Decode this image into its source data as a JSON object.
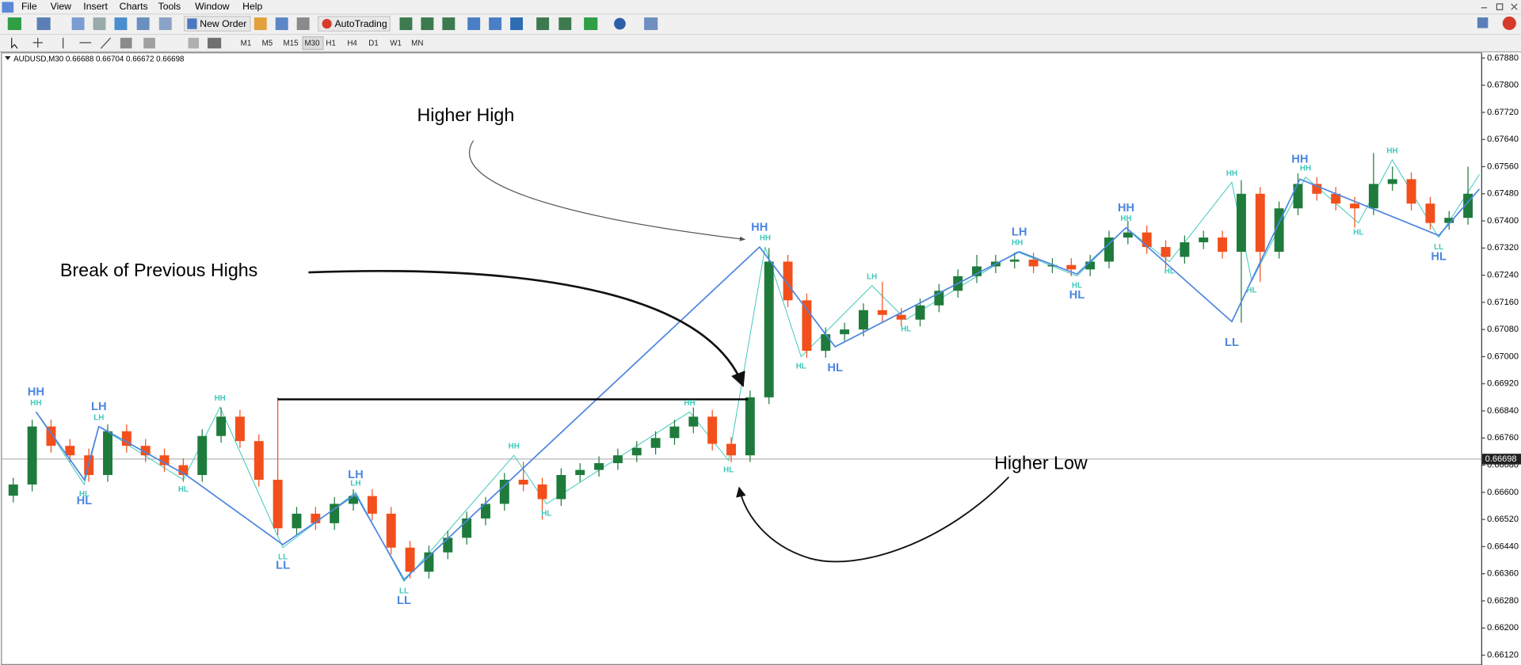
{
  "menu": [
    "File",
    "View",
    "Insert",
    "Charts",
    "Tools",
    "Window",
    "Help"
  ],
  "toolbar": {
    "new_order": "New Order",
    "autotrading": "AutoTrading"
  },
  "timeframes": [
    "M1",
    "M5",
    "M15",
    "M30",
    "H1",
    "H4",
    "D1",
    "W1",
    "MN"
  ],
  "chart_header": "AUDUSD,M30  0.66688 0.66704 0.66672 0.66698",
  "chart_data": {
    "type": "candlestick",
    "up_color": "#1e7b3c",
    "down_color": "#f24f1c",
    "xlim": [
      -0.6,
      77.7
    ],
    "ylim": [
      0.66091,
      0.67894
    ],
    "yticks": [
      {
        "value": 0.6788,
        "label": "0.67880"
      },
      {
        "value": 0.678,
        "label": "0.67800"
      },
      {
        "value": 0.6772,
        "label": "0.67720"
      },
      {
        "value": 0.6764,
        "label": "0.67640"
      },
      {
        "value": 0.6756,
        "label": "0.67560"
      },
      {
        "value": 0.6748,
        "label": "0.67480"
      },
      {
        "value": 0.674,
        "label": "0.67400"
      },
      {
        "value": 0.6732,
        "label": "0.67320"
      },
      {
        "value": 0.6724,
        "label": "0.67240"
      },
      {
        "value": 0.6716,
        "label": "0.67160"
      },
      {
        "value": 0.6708,
        "label": "0.67080"
      },
      {
        "value": 0.67,
        "label": "0.67000"
      },
      {
        "value": 0.6692,
        "label": "0.66920"
      },
      {
        "value": 0.6684,
        "label": "0.66840"
      },
      {
        "value": 0.6676,
        "label": "0.66760"
      },
      {
        "value": 0.6668,
        "label": "0.66680"
      },
      {
        "value": 0.666,
        "label": "0.66600"
      },
      {
        "value": 0.6652,
        "label": "0.66520"
      },
      {
        "value": 0.6644,
        "label": "0.66440"
      },
      {
        "value": 0.6636,
        "label": "0.66360"
      },
      {
        "value": 0.6628,
        "label": "0.66280"
      },
      {
        "value": 0.662,
        "label": "0.66200"
      },
      {
        "value": 0.6612,
        "label": "0.66120"
      }
    ],
    "ohlc": [
      [
        0.6659,
        0.66643,
        0.6657,
        0.66623
      ],
      [
        0.66623,
        0.66814,
        0.66603,
        0.66794
      ],
      [
        0.66794,
        0.66814,
        0.66717,
        0.66737
      ],
      [
        0.66737,
        0.66757,
        0.66689,
        0.66709
      ],
      [
        0.66709,
        0.66729,
        0.66631,
        0.66651
      ],
      [
        0.66651,
        0.668,
        0.66631,
        0.6678
      ],
      [
        0.6678,
        0.668,
        0.66717,
        0.66737
      ],
      [
        0.66737,
        0.66757,
        0.66689,
        0.66709
      ],
      [
        0.66709,
        0.66729,
        0.6666,
        0.6668
      ],
      [
        0.6668,
        0.667,
        0.66631,
        0.66651
      ],
      [
        0.66651,
        0.66786,
        0.66631,
        0.66766
      ],
      [
        0.66766,
        0.6685,
        0.66746,
        0.66823
      ],
      [
        0.66823,
        0.66843,
        0.66731,
        0.66751
      ],
      [
        0.66751,
        0.66771,
        0.66617,
        0.66637
      ],
      [
        0.66637,
        0.6688,
        0.66474,
        0.66494
      ],
      [
        0.66494,
        0.66557,
        0.66474,
        0.66537
      ],
      [
        0.66537,
        0.66557,
        0.66489,
        0.66509
      ],
      [
        0.66509,
        0.66586,
        0.66489,
        0.66566
      ],
      [
        0.66566,
        0.66609,
        0.66546,
        0.66589
      ],
      [
        0.66589,
        0.66609,
        0.66517,
        0.66537
      ],
      [
        0.66537,
        0.66557,
        0.66417,
        0.66437
      ],
      [
        0.66437,
        0.66457,
        0.66346,
        0.66366
      ],
      [
        0.66366,
        0.66443,
        0.66346,
        0.66423
      ],
      [
        0.66423,
        0.66486,
        0.66403,
        0.66466
      ],
      [
        0.66466,
        0.66543,
        0.66446,
        0.66523
      ],
      [
        0.66523,
        0.66586,
        0.66503,
        0.66566
      ],
      [
        0.66566,
        0.66657,
        0.66546,
        0.66637
      ],
      [
        0.66637,
        0.6669,
        0.66603,
        0.66623
      ],
      [
        0.66623,
        0.66643,
        0.6652,
        0.6658
      ],
      [
        0.6658,
        0.66671,
        0.6656,
        0.66651
      ],
      [
        0.66651,
        0.66686,
        0.66631,
        0.66666
      ],
      [
        0.66666,
        0.66706,
        0.66646,
        0.66686
      ],
      [
        0.66686,
        0.66729,
        0.66666,
        0.66709
      ],
      [
        0.66709,
        0.66751,
        0.66689,
        0.66731
      ],
      [
        0.66731,
        0.6678,
        0.66711,
        0.6676
      ],
      [
        0.6676,
        0.66814,
        0.6674,
        0.66794
      ],
      [
        0.66794,
        0.6685,
        0.66774,
        0.66823
      ],
      [
        0.66823,
        0.66843,
        0.66723,
        0.66743
      ],
      [
        0.66743,
        0.66763,
        0.66689,
        0.66709
      ],
      [
        0.66709,
        0.669,
        0.66689,
        0.6688
      ],
      [
        0.6688,
        0.6732,
        0.6686,
        0.6728
      ],
      [
        0.6728,
        0.673,
        0.67146,
        0.67166
      ],
      [
        0.67166,
        0.67186,
        0.66997,
        0.67017
      ],
      [
        0.67017,
        0.67086,
        0.66997,
        0.67066
      ],
      [
        0.67066,
        0.671,
        0.67046,
        0.6708
      ],
      [
        0.6708,
        0.67157,
        0.6706,
        0.67137
      ],
      [
        0.67137,
        0.6722,
        0.67103,
        0.67123
      ],
      [
        0.67123,
        0.67143,
        0.67089,
        0.67109
      ],
      [
        0.67109,
        0.67171,
        0.67089,
        0.67151
      ],
      [
        0.67151,
        0.67214,
        0.67131,
        0.67194
      ],
      [
        0.67194,
        0.67257,
        0.67174,
        0.67237
      ],
      [
        0.67237,
        0.673,
        0.67217,
        0.67266
      ],
      [
        0.67266,
        0.673,
        0.67246,
        0.6728
      ],
      [
        0.6728,
        0.67306,
        0.6726,
        0.67286
      ],
      [
        0.67286,
        0.67306,
        0.67246,
        0.67266
      ],
      [
        0.67266,
        0.6729,
        0.67246,
        0.6727
      ],
      [
        0.6727,
        0.6729,
        0.67237,
        0.67257
      ],
      [
        0.67257,
        0.673,
        0.67237,
        0.6728
      ],
      [
        0.6728,
        0.67371,
        0.6726,
        0.67351
      ],
      [
        0.67351,
        0.674,
        0.67331,
        0.67366
      ],
      [
        0.67366,
        0.67386,
        0.67303,
        0.67323
      ],
      [
        0.67323,
        0.67343,
        0.6726,
        0.67294
      ],
      [
        0.67294,
        0.67357,
        0.67274,
        0.67337
      ],
      [
        0.67337,
        0.67371,
        0.67317,
        0.67351
      ],
      [
        0.67351,
        0.67371,
        0.67289,
        0.67309
      ],
      [
        0.67309,
        0.6752,
        0.671,
        0.6748
      ],
      [
        0.6748,
        0.675,
        0.6722,
        0.67309
      ],
      [
        0.67309,
        0.67457,
        0.67289,
        0.67437
      ],
      [
        0.67437,
        0.6754,
        0.67417,
        0.67509
      ],
      [
        0.67509,
        0.67529,
        0.6746,
        0.6748
      ],
      [
        0.6748,
        0.675,
        0.67431,
        0.67451
      ],
      [
        0.67451,
        0.67471,
        0.6738,
        0.67437
      ],
      [
        0.67437,
        0.676,
        0.67417,
        0.67509
      ],
      [
        0.67509,
        0.6756,
        0.67489,
        0.67523
      ],
      [
        0.67523,
        0.67543,
        0.67431,
        0.67451
      ],
      [
        0.67451,
        0.67471,
        0.67374,
        0.67394
      ],
      [
        0.67394,
        0.67429,
        0.67374,
        0.67409
      ],
      [
        0.67409,
        0.6756,
        0.67389,
        0.6748
      ]
    ],
    "zigzag": {
      "color": "#4d86e0",
      "points": [
        {
          "x": 1.2,
          "y": 0.66837,
          "label": "HH"
        },
        {
          "x": 3.76,
          "y": 0.66637,
          "label": "HL"
        },
        {
          "x": 4.53,
          "y": 0.66794,
          "label": "LH"
        },
        {
          "x": 9.15,
          "y": 0.66651,
          "label": null
        },
        {
          "x": 14.27,
          "y": 0.66446,
          "label": "LL"
        },
        {
          "x": 18.12,
          "y": 0.66594,
          "label": "LH"
        },
        {
          "x": 20.68,
          "y": 0.66343,
          "label": "LL"
        },
        {
          "x": 39.5,
          "y": 0.67323,
          "label": "HH"
        },
        {
          "x": 43.5,
          "y": 0.67029,
          "label": "HL"
        },
        {
          "x": 53.25,
          "y": 0.67309,
          "label": "LH"
        },
        {
          "x": 56.3,
          "y": 0.67243,
          "label": "HL"
        },
        {
          "x": 58.9,
          "y": 0.6738,
          "label": "HH"
        },
        {
          "x": 64.5,
          "y": 0.67103,
          "label": "LL"
        },
        {
          "x": 68.1,
          "y": 0.67523,
          "label": "HH"
        },
        {
          "x": 75.45,
          "y": 0.67357,
          "label": "HL"
        },
        {
          "x": 77.6,
          "y": 0.67494,
          "label": null
        }
      ]
    },
    "minor_zigzag": {
      "color": "#3ec7b9",
      "points": [
        {
          "x": 1.2,
          "y": 0.66837,
          "label": "HH"
        },
        {
          "x": 3.76,
          "y": 0.66623,
          "label": "HL"
        },
        {
          "x": 4.53,
          "y": 0.66794,
          "label": "LH"
        },
        {
          "x": 9.0,
          "y": 0.66637,
          "label": "HL"
        },
        {
          "x": 10.94,
          "y": 0.66851,
          "label": "HH"
        },
        {
          "x": 14.27,
          "y": 0.66437,
          "label": "LL"
        },
        {
          "x": 18.12,
          "y": 0.666,
          "label": "LH"
        },
        {
          "x": 20.68,
          "y": 0.66337,
          "label": "LL"
        },
        {
          "x": 26.5,
          "y": 0.66709,
          "label": "HH"
        },
        {
          "x": 28.22,
          "y": 0.66566,
          "label": "HL"
        },
        {
          "x": 35.8,
          "y": 0.66837,
          "label": "HH"
        },
        {
          "x": 37.86,
          "y": 0.66694,
          "label": "HL"
        },
        {
          "x": 39.8,
          "y": 0.67323,
          "label": "HH"
        },
        {
          "x": 41.7,
          "y": 0.67,
          "label": "HL"
        },
        {
          "x": 45.45,
          "y": 0.67209,
          "label": "LH"
        },
        {
          "x": 47.25,
          "y": 0.67109,
          "label": "HL"
        },
        {
          "x": 53.14,
          "y": 0.67309,
          "label": "HH"
        },
        {
          "x": 56.3,
          "y": 0.67237,
          "label": "HL"
        },
        {
          "x": 58.9,
          "y": 0.6738,
          "label": "HH"
        },
        {
          "x": 61.2,
          "y": 0.6728,
          "label": "HL"
        },
        {
          "x": 64.5,
          "y": 0.67514,
          "label": "HH"
        },
        {
          "x": 65.55,
          "y": 0.67223,
          "label": "HL"
        },
        {
          "x": 68.4,
          "y": 0.67529,
          "label": "HH"
        },
        {
          "x": 71.2,
          "y": 0.67394,
          "label": "HL"
        },
        {
          "x": 72.99,
          "y": 0.6758,
          "label": "HH"
        },
        {
          "x": 75.45,
          "y": 0.67351,
          "label": "LL"
        },
        {
          "x": 77.6,
          "y": 0.67537,
          "label": null
        }
      ]
    },
    "level": {
      "price": 0.66874,
      "from": 14,
      "to": 38.9
    },
    "last_price": 0.66698,
    "annotations": [
      "Higher High",
      "Break of Previous Highs",
      "Higher Low"
    ]
  }
}
